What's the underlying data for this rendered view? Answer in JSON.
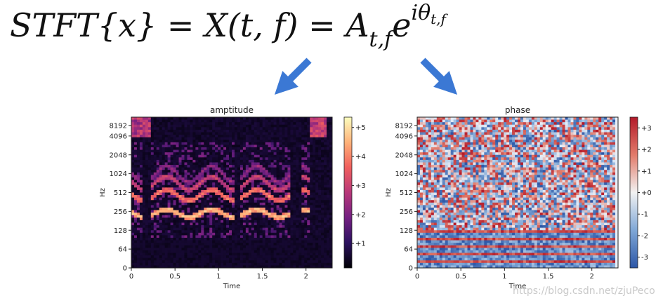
{
  "formula": {
    "stft": "STFT",
    "lbrace": "{",
    "x": "x",
    "rbrace": "}",
    "eq1": " = ",
    "X": "X",
    "args": "(t, f)",
    "eq2": " = ",
    "A": "A",
    "A_sub": "t,f",
    "e": "e",
    "exp_i": "iθ",
    "exp_sub": "t,f"
  },
  "colors": {
    "arrow": "#3b78d4",
    "magma": [
      "#000004",
      "#2c115f",
      "#721f81",
      "#b73779",
      "#f1605d",
      "#feb078",
      "#fcfdbf"
    ],
    "rdbu": [
      "#2c56a6",
      "#7fa7d6",
      "#e8eef7",
      "#e27b6a",
      "#b31a2a"
    ]
  },
  "chart_data": [
    {
      "type": "heatmap",
      "title": "amptitude",
      "xlabel": "Time",
      "ylabel": "Hz",
      "xlim": [
        0,
        2.3
      ],
      "x_ticks": [
        "0",
        "0.5",
        "1",
        "1.5",
        "2"
      ],
      "y_ticks": [
        "0",
        "64",
        "128",
        "256",
        "512",
        "1024",
        "2048",
        "4096",
        "8192"
      ],
      "colorbar_ticks": [
        "+1",
        "+2",
        "+3",
        "+4",
        "+5"
      ],
      "colormap": "magma"
    },
    {
      "type": "heatmap",
      "title": "phase",
      "xlabel": "Time",
      "ylabel": "Hz",
      "xlim": [
        0,
        2.3
      ],
      "x_ticks": [
        "0",
        "0.5",
        "1",
        "1.5",
        "2"
      ],
      "y_ticks": [
        "0",
        "64",
        "128",
        "256",
        "512",
        "1024",
        "2048",
        "4096",
        "8192"
      ],
      "colorbar_ticks": [
        "-3",
        "-2",
        "-1",
        "+0",
        "+1",
        "+2",
        "+3"
      ],
      "colormap": "RdBu_r"
    }
  ],
  "watermark": "https://blog.csdn.net/zjuPeco"
}
